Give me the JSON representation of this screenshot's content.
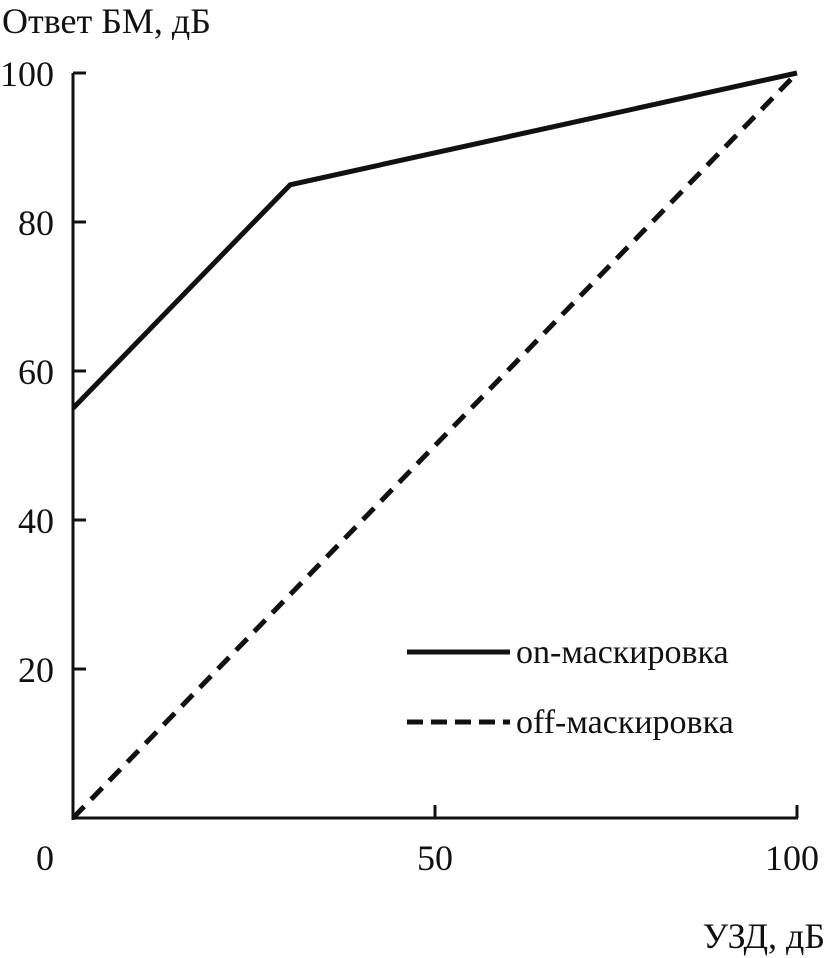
{
  "chart_data": {
    "type": "line",
    "title": "",
    "ylabel": "Ответ БМ, дБ",
    "xlabel": "УЗД, дБ",
    "xlim": [
      0,
      100
    ],
    "ylim": [
      0,
      100
    ],
    "x_ticks": [
      0,
      50,
      100
    ],
    "x_tick_labels": [
      "0",
      "50",
      "100"
    ],
    "y_ticks": [
      20,
      40,
      60,
      80,
      100
    ],
    "y_tick_labels": [
      "20",
      "40",
      "60",
      "80",
      "100"
    ],
    "grid": false,
    "legend_position": "bottom-right",
    "series": [
      {
        "name": "on-маскировка",
        "style": "solid",
        "color": "#111111",
        "x": [
          0,
          30,
          100
        ],
        "y": [
          55,
          85,
          100
        ]
      },
      {
        "name": "off-маскировка",
        "style": "dashed",
        "color": "#111111",
        "x": [
          0,
          100
        ],
        "y": [
          0,
          100
        ]
      }
    ]
  }
}
